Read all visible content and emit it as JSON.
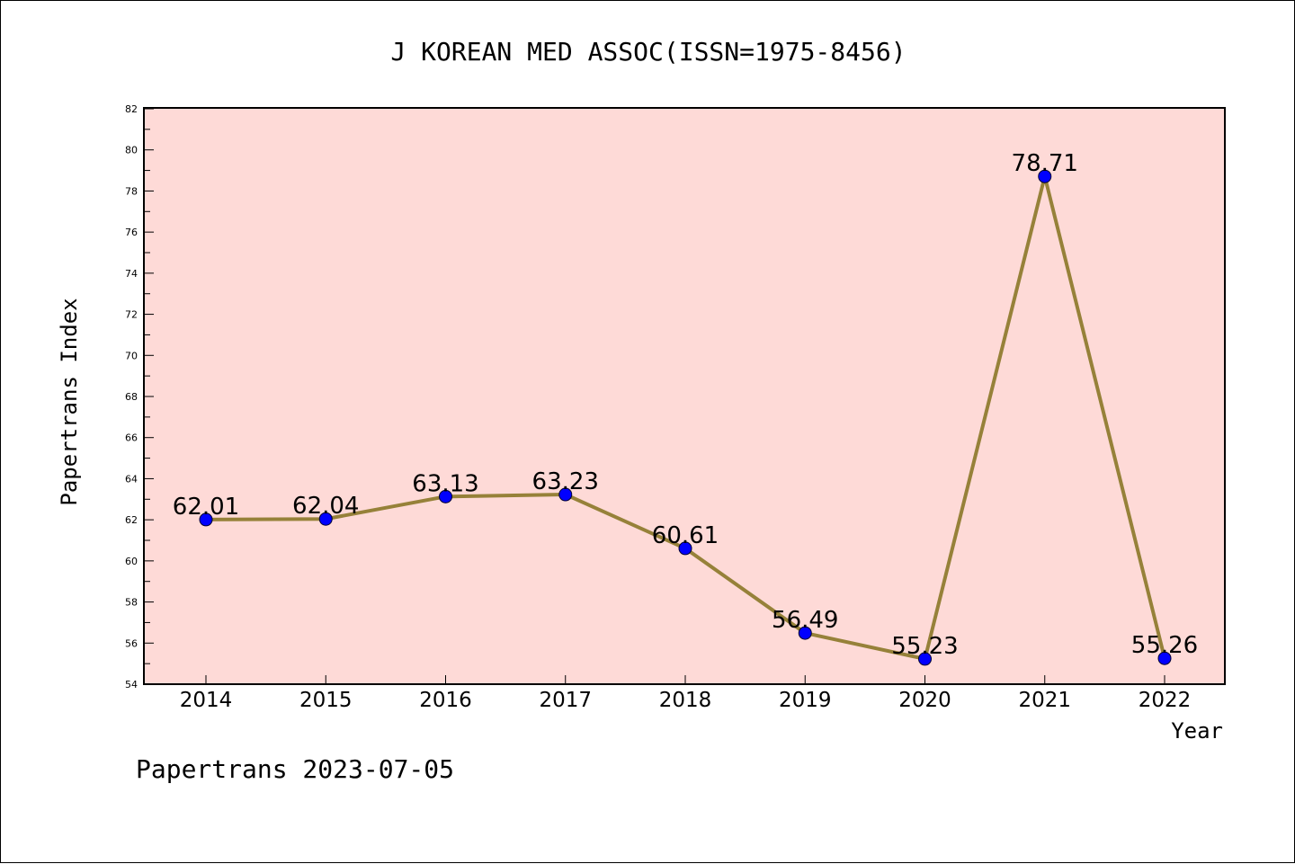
{
  "chart_data": {
    "type": "line",
    "title": "J KOREAN MED ASSOC(ISSN=1975-8456)",
    "xlabel": "Year",
    "ylabel": "Papertrans Index",
    "footer": "Papertrans 2023-07-05",
    "x": [
      "2014",
      "2015",
      "2016",
      "2017",
      "2018",
      "2019",
      "2020",
      "2021",
      "2022"
    ],
    "series": [
      {
        "values": [
          62.01,
          62.04,
          63.13,
          63.23,
          60.61,
          56.49,
          55.23,
          78.71,
          55.26
        ],
        "data_labels": [
          "62.01",
          "62.04",
          "63.13",
          "63.23",
          "60.61",
          "56.49",
          "55.23",
          "78.71",
          "55.26"
        ]
      }
    ],
    "ylim": [
      54,
      82
    ],
    "yticks": [
      "54",
      "56",
      "58",
      "60",
      "62",
      "64",
      "66",
      "68",
      "70",
      "72",
      "74",
      "76",
      "78",
      "80",
      "82"
    ],
    "grid": false,
    "colors": {
      "plot_background": "#fedad7",
      "line": "#968139",
      "marker": "#0000ff"
    }
  }
}
